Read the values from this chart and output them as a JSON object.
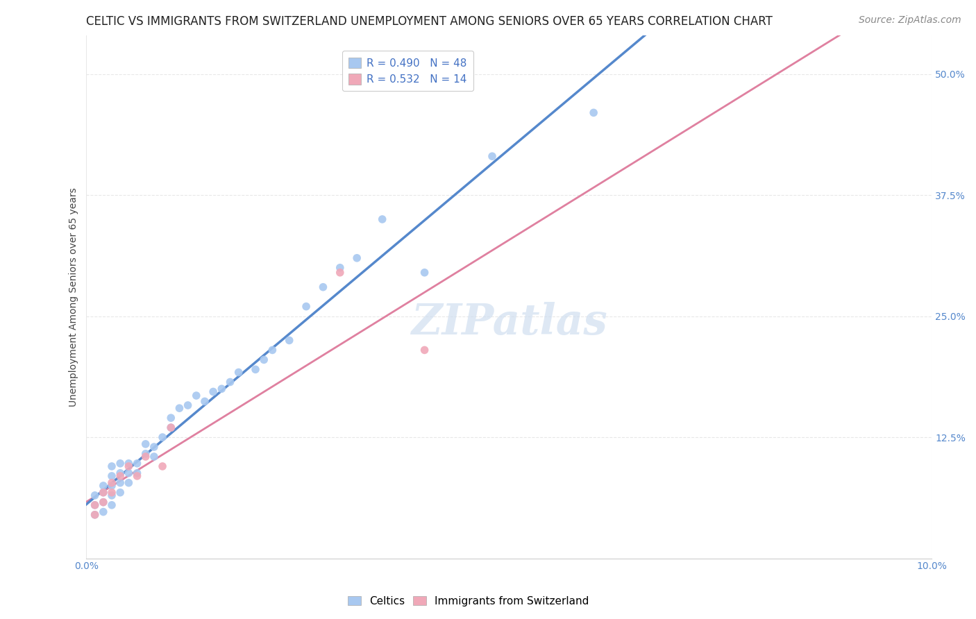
{
  "title": "CELTIC VS IMMIGRANTS FROM SWITZERLAND UNEMPLOYMENT AMONG SENIORS OVER 65 YEARS CORRELATION CHART",
  "source": "Source: ZipAtlas.com",
  "ylabel": "Unemployment Among Seniors over 65 years",
  "ytick_labels": [
    "12.5%",
    "25.0%",
    "37.5%",
    "50.0%"
  ],
  "ytick_values": [
    0.125,
    0.25,
    0.375,
    0.5
  ],
  "xmin": 0.0,
  "xmax": 0.1,
  "ymin": 0.0,
  "ymax": 0.54,
  "celtics_R": 0.49,
  "celtics_N": 48,
  "swiss_R": 0.532,
  "swiss_N": 14,
  "celtics_color": "#a8c8f0",
  "swiss_color": "#f0a8b8",
  "celtics_line_color": "#5588cc",
  "swiss_line_color": "#e080a0",
  "swiss_dash_color": "#d0b0b8",
  "watermark": "ZIPatlas",
  "watermark_color": "#d0dff0",
  "legend_label_1": "Celtics",
  "legend_label_2": "Immigrants from Switzerland",
  "celtics_x": [
    0.001,
    0.001,
    0.001,
    0.002,
    0.002,
    0.002,
    0.002,
    0.003,
    0.003,
    0.003,
    0.003,
    0.003,
    0.004,
    0.004,
    0.004,
    0.004,
    0.005,
    0.005,
    0.005,
    0.006,
    0.006,
    0.007,
    0.007,
    0.008,
    0.008,
    0.009,
    0.01,
    0.01,
    0.011,
    0.012,
    0.013,
    0.014,
    0.015,
    0.016,
    0.017,
    0.018,
    0.02,
    0.021,
    0.022,
    0.024,
    0.026,
    0.028,
    0.03,
    0.032,
    0.035,
    0.04,
    0.048,
    0.06
  ],
  "celtics_y": [
    0.045,
    0.055,
    0.065,
    0.048,
    0.058,
    0.068,
    0.075,
    0.055,
    0.065,
    0.075,
    0.085,
    0.095,
    0.068,
    0.078,
    0.088,
    0.098,
    0.078,
    0.088,
    0.098,
    0.088,
    0.098,
    0.108,
    0.118,
    0.105,
    0.115,
    0.125,
    0.135,
    0.145,
    0.155,
    0.158,
    0.168,
    0.162,
    0.172,
    0.175,
    0.182,
    0.192,
    0.195,
    0.205,
    0.215,
    0.225,
    0.26,
    0.28,
    0.3,
    0.31,
    0.35,
    0.295,
    0.415,
    0.46
  ],
  "swiss_x": [
    0.001,
    0.001,
    0.002,
    0.002,
    0.003,
    0.003,
    0.004,
    0.005,
    0.006,
    0.007,
    0.009,
    0.01,
    0.03,
    0.04
  ],
  "swiss_y": [
    0.045,
    0.055,
    0.058,
    0.068,
    0.068,
    0.078,
    0.085,
    0.095,
    0.085,
    0.105,
    0.095,
    0.135,
    0.295,
    0.215
  ],
  "background_color": "#ffffff",
  "grid_color": "#e8e8e8",
  "title_fontsize": 12,
  "axis_fontsize": 10,
  "tick_fontsize": 10,
  "legend_fontsize": 11,
  "source_fontsize": 10
}
